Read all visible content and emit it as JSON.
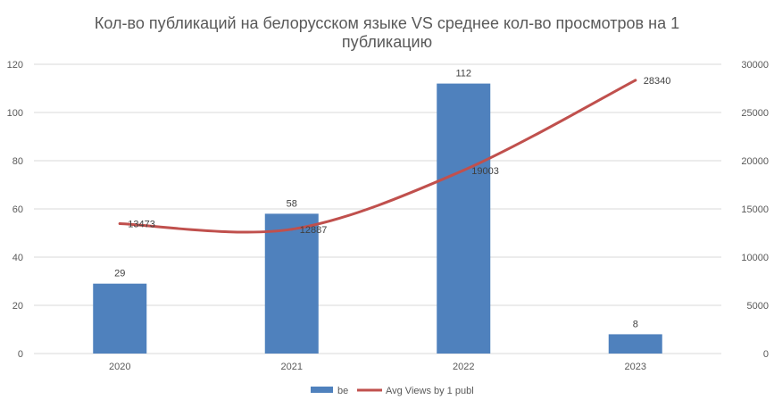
{
  "chart_data": {
    "type": "bar",
    "title_line1": "Кол-во публикаций на белорусском языке VS среднее кол-во просмотров на 1",
    "title_line2": "публикацию",
    "categories": [
      "2020",
      "2021",
      "2022",
      "2023"
    ],
    "series": [
      {
        "name": "be",
        "type": "bar",
        "axis": "left",
        "values": [
          29,
          58,
          112,
          8
        ],
        "labels": [
          "29",
          "58",
          "112",
          "8"
        ],
        "color": "#4f81bd"
      },
      {
        "name": "Avg Views by 1 publ",
        "type": "line",
        "axis": "right",
        "values": [
          13473,
          12887,
          19003,
          28340
        ],
        "labels": [
          "13473",
          "12887",
          "19003",
          "28340"
        ],
        "color": "#c0504d"
      }
    ],
    "y_left": {
      "min": 0,
      "max": 120,
      "ticks": [
        "0",
        "20",
        "40",
        "60",
        "80",
        "100",
        "120"
      ]
    },
    "y_right": {
      "min": 0,
      "max": 30000,
      "ticks": [
        "0",
        "5000",
        "10000",
        "15000",
        "20000",
        "25000",
        "30000"
      ]
    },
    "grid": true,
    "legend_position": "bottom"
  }
}
